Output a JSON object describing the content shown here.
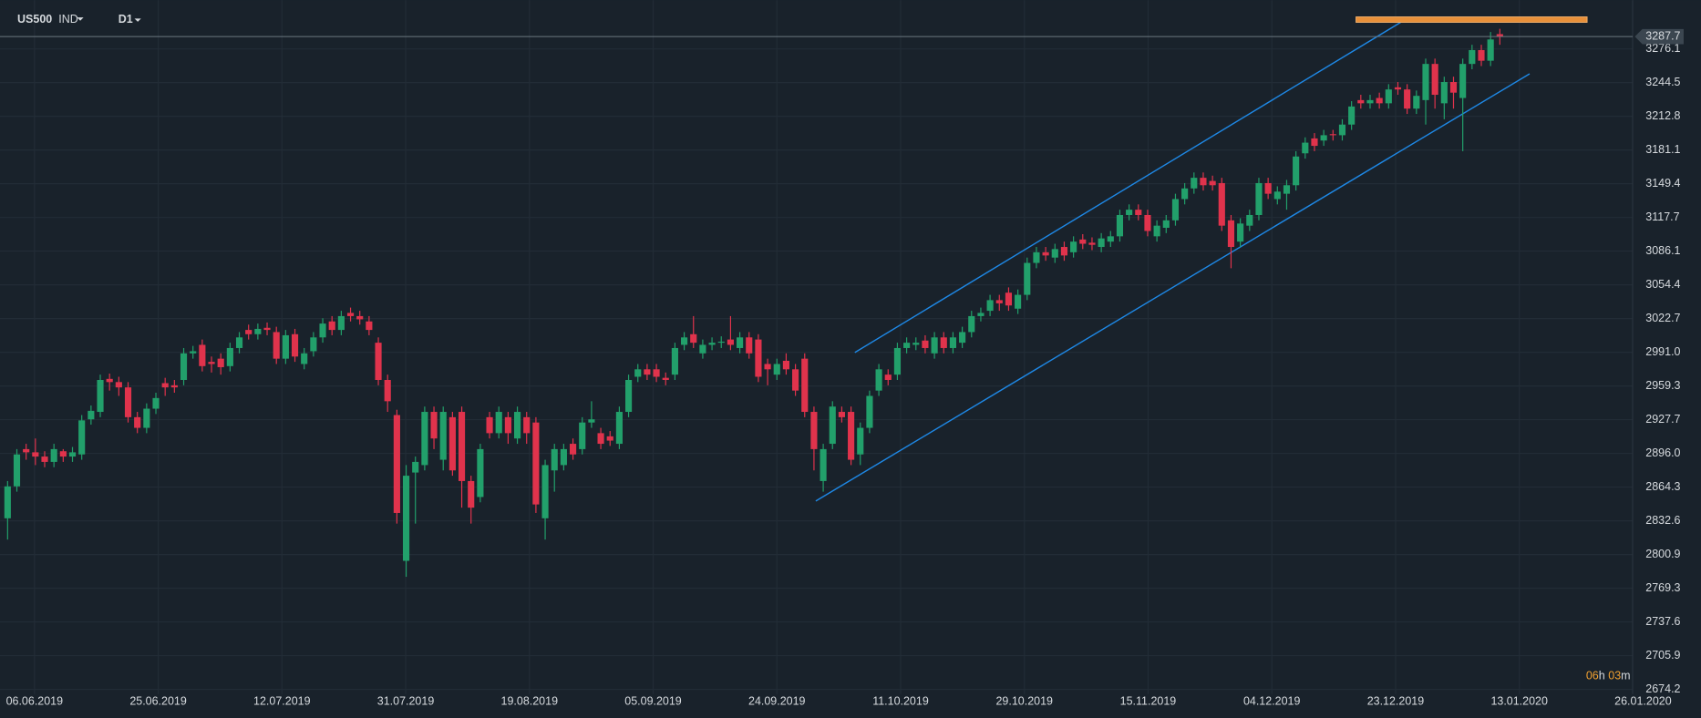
{
  "chart_data": {
    "type": "candlestick",
    "title": "US500",
    "symbol_type": "IND",
    "timeframe": "D1",
    "up_color": "#22a06b",
    "down_color": "#e0334c",
    "grid": true,
    "current_price": 3287.7,
    "countdown": {
      "hours": "06",
      "hours_unit": "h",
      "minutes": "03",
      "minutes_unit": "m"
    },
    "xlim": [
      -0.82,
      176.5
    ],
    "xticks": [
      {
        "value": 2.9,
        "label": "06.06.2019"
      },
      {
        "value": 16.25,
        "label": "25.06.2019"
      },
      {
        "value": 29.6,
        "label": "12.07.2019"
      },
      {
        "value": 42.95,
        "label": "31.07.2019"
      },
      {
        "value": 56.3,
        "label": "19.08.2019"
      },
      {
        "value": 69.65,
        "label": "05.09.2019"
      },
      {
        "value": 83,
        "label": "24.09.2019"
      },
      {
        "value": 96.35,
        "label": "11.10.2019"
      },
      {
        "value": 109.7,
        "label": "29.10.2019"
      },
      {
        "value": 123.05,
        "label": "15.11.2019"
      },
      {
        "value": 136.4,
        "label": "04.12.2019"
      },
      {
        "value": 149.75,
        "label": "23.12.2019"
      },
      {
        "value": 163.1,
        "label": "13.01.2020"
      },
      {
        "value": 176.45,
        "label": "26.01.2020"
      }
    ],
    "ylim": [
      2669.8,
      3322
    ],
    "yticks": [
      3276.1,
      3244.5,
      3212.8,
      3181.1,
      3149.4,
      3117.7,
      3086.1,
      3054.4,
      3022.7,
      {
        "value": 2991,
        "label": "2991.0"
      },
      2959.3,
      2927.7,
      {
        "value": 2896,
        "label": "2896.0"
      },
      2864.3,
      2832.6,
      2800.9,
      2769.3,
      2737.6,
      2705.9,
      2674.2
    ],
    "open": [
      2835,
      2865,
      2900,
      2897,
      2893,
      2888,
      2898,
      2893,
      2895,
      2928,
      2935,
      2966,
      2963,
      2958,
      2930,
      2920,
      2938,
      2962,
      2960,
      2965,
      2990,
      2998,
      2982,
      2985,
      2978,
      2995,
      3012,
      3008,
      3014,
      3010,
      2985,
      3008,
      2980,
      2992,
      3005,
      3020,
      3012,
      3028,
      3025,
      3020,
      3000,
      2965,
      2932,
      2795,
      2878,
      2885,
      2935,
      2890,
      2930,
      2935,
      2870,
      2855,
      2930,
      2915,
      2930,
      2910,
      2930,
      2925,
      2835,
      2880,
      2885,
      2905,
      2900,
      2925,
      2915,
      2912,
      2905,
      2935,
      2968,
      2975,
      2975,
      2967,
      2970,
      2998,
      3008,
      2990,
      2998,
      3000,
      3003,
      2995,
      3005,
      3003,
      2980,
      2970,
      2983,
      2975,
      2985,
      2935,
      2870,
      2905,
      2935,
      2935,
      2895,
      2920,
      2955,
      2970,
      2970,
      2995,
      2998,
      3002,
      2990,
      3005,
      2995,
      3000,
      3010,
      3025,
      3030,
      3040,
      3047,
      3032,
      3045,
      3075,
      3085,
      3080,
      3090,
      3085,
      3097,
      3094,
      3090,
      3095,
      3100,
      3120,
      3125,
      3120,
      3100,
      3108,
      3115,
      3135,
      3145,
      3155,
      3152,
      3150,
      3115,
      3095,
      3110,
      3120,
      3150,
      3135,
      3140,
      3148,
      3178,
      3192,
      3190,
      3196,
      3195,
      3205,
      3228,
      3225,
      3230,
      3225,
      3240,
      3238,
      3220,
      3228,
      3262,
      3225,
      3245,
      3230,
      3262,
      3275,
      3265,
      3290
    ],
    "high": [
      2870,
      2900,
      2905,
      2910,
      2898,
      2905,
      2900,
      2902,
      2932,
      2941,
      2970,
      2971,
      2968,
      2963,
      2935,
      2943,
      2953,
      2967,
      2965,
      2995,
      2997,
      3003,
      2987,
      2990,
      3000,
      3010,
      3017,
      3018,
      3019,
      3015,
      3012,
      3013,
      2995,
      3010,
      3023,
      3025,
      3030,
      3033,
      3030,
      3025,
      3005,
      2970,
      2937,
      2885,
      2893,
      2940,
      2940,
      2940,
      2935,
      2940,
      2875,
      2905,
      2935,
      2940,
      2935,
      2940,
      2935,
      2930,
      2890,
      2905,
      2905,
      2910,
      2930,
      2945,
      2920,
      2917,
      2940,
      2970,
      2980,
      2980,
      2980,
      2972,
      3000,
      3010,
      3025,
      3003,
      3005,
      3006,
      3025,
      3010,
      3010,
      3008,
      2985,
      2985,
      2990,
      2980,
      2990,
      2940,
      2905,
      2945,
      2940,
      2940,
      2925,
      2955,
      2980,
      2975,
      3000,
      3005,
      3005,
      3007,
      3010,
      3010,
      3010,
      3015,
      3030,
      3033,
      3045,
      3045,
      3052,
      3050,
      3080,
      3090,
      3090,
      3093,
      3095,
      3100,
      3102,
      3099,
      3103,
      3105,
      3125,
      3130,
      3130,
      3125,
      3115,
      3120,
      3140,
      3150,
      3160,
      3160,
      3157,
      3155,
      3120,
      3117,
      3125,
      3155,
      3155,
      3147,
      3153,
      3180,
      3193,
      3197,
      3200,
      3200,
      3210,
      3227,
      3233,
      3233,
      3235,
      3243,
      3245,
      3243,
      3237,
      3267,
      3267,
      3250,
      3250,
      3267,
      3280,
      3280,
      3292,
      3295
    ],
    "low": [
      2815,
      2860,
      2890,
      2885,
      2883,
      2883,
      2888,
      2888,
      2890,
      2923,
      2930,
      2955,
      2950,
      2925,
      2915,
      2915,
      2933,
      2950,
      2953,
      2960,
      2985,
      2973,
      2972,
      2970,
      2973,
      2990,
      3003,
      3003,
      3007,
      2980,
      2980,
      2982,
      2975,
      2987,
      3000,
      3007,
      3007,
      3020,
      3017,
      3007,
      2960,
      2935,
      2830,
      2780,
      2830,
      2880,
      2900,
      2880,
      2875,
      2845,
      2830,
      2850,
      2910,
      2910,
      2905,
      2905,
      2905,
      2840,
      2815,
      2860,
      2880,
      2890,
      2895,
      2920,
      2900,
      2903,
      2900,
      2930,
      2963,
      2965,
      2963,
      2960,
      2965,
      2993,
      2995,
      2985,
      2993,
      2995,
      2993,
      2990,
      2985,
      2963,
      2960,
      2965,
      2970,
      2950,
      2930,
      2880,
      2860,
      2900,
      2925,
      2885,
      2885,
      2915,
      2950,
      2960,
      2965,
      2990,
      2993,
      2990,
      2985,
      2990,
      2990,
      2995,
      3005,
      3020,
      3025,
      3030,
      3030,
      3027,
      3040,
      3070,
      3077,
      3075,
      3077,
      3080,
      3088,
      3087,
      3085,
      3090,
      3095,
      3115,
      3115,
      3100,
      3095,
      3103,
      3110,
      3130,
      3140,
      3143,
      3143,
      3105,
      3070,
      3090,
      3105,
      3115,
      3135,
      3130,
      3125,
      3143,
      3173,
      3180,
      3185,
      3190,
      3190,
      3200,
      3220,
      3220,
      3220,
      3220,
      3233,
      3215,
      3215,
      3205,
      3220,
      3210,
      3220,
      3180,
      3257,
      3260,
      3260,
      3280
    ],
    "close": [
      2865,
      2895,
      2897,
      2893,
      2888,
      2900,
      2893,
      2897,
      2927,
      2936,
      2965,
      2963,
      2958,
      2930,
      2920,
      2938,
      2948,
      2958,
      2958,
      2990,
      2992,
      2978,
      2980,
      2977,
      2995,
      3005,
      3008,
      3013,
      3012,
      2985,
      3007,
      2987,
      2990,
      3005,
      3018,
      3012,
      3025,
      3025,
      3022,
      3012,
      2965,
      2945,
      2840,
      2875,
      2888,
      2935,
      2910,
      2935,
      2880,
      2870,
      2845,
      2900,
      2915,
      2935,
      2915,
      2935,
      2915,
      2848,
      2885,
      2900,
      2900,
      2895,
      2925,
      2928,
      2905,
      2908,
      2935,
      2965,
      2975,
      2970,
      2968,
      2965,
      2995,
      3005,
      3000,
      2998,
      3000,
      3001,
      2998,
      3005,
      2990,
      2968,
      2975,
      2980,
      2975,
      2955,
      2935,
      2900,
      2900,
      2940,
      2930,
      2890,
      2920,
      2950,
      2975,
      2965,
      2995,
      3000,
      3000,
      2995,
      3005,
      2995,
      3005,
      3010,
      3025,
      3028,
      3040,
      3037,
      3035,
      3045,
      3075,
      3085,
      3082,
      3088,
      3082,
      3095,
      3093,
      3092,
      3098,
      3100,
      3120,
      3125,
      3120,
      3105,
      3110,
      3115,
      3135,
      3145,
      3155,
      3148,
      3148,
      3110,
      3090,
      3112,
      3120,
      3150,
      3140,
      3142,
      3148,
      3175,
      3188,
      3185,
      3195,
      3195,
      3205,
      3222,
      3225,
      3228,
      3225,
      3238,
      3238,
      3220,
      3232,
      3262,
      3233,
      3245,
      3235,
      3262,
      3275,
      3265,
      3285,
      3287.7
    ]
  }
}
